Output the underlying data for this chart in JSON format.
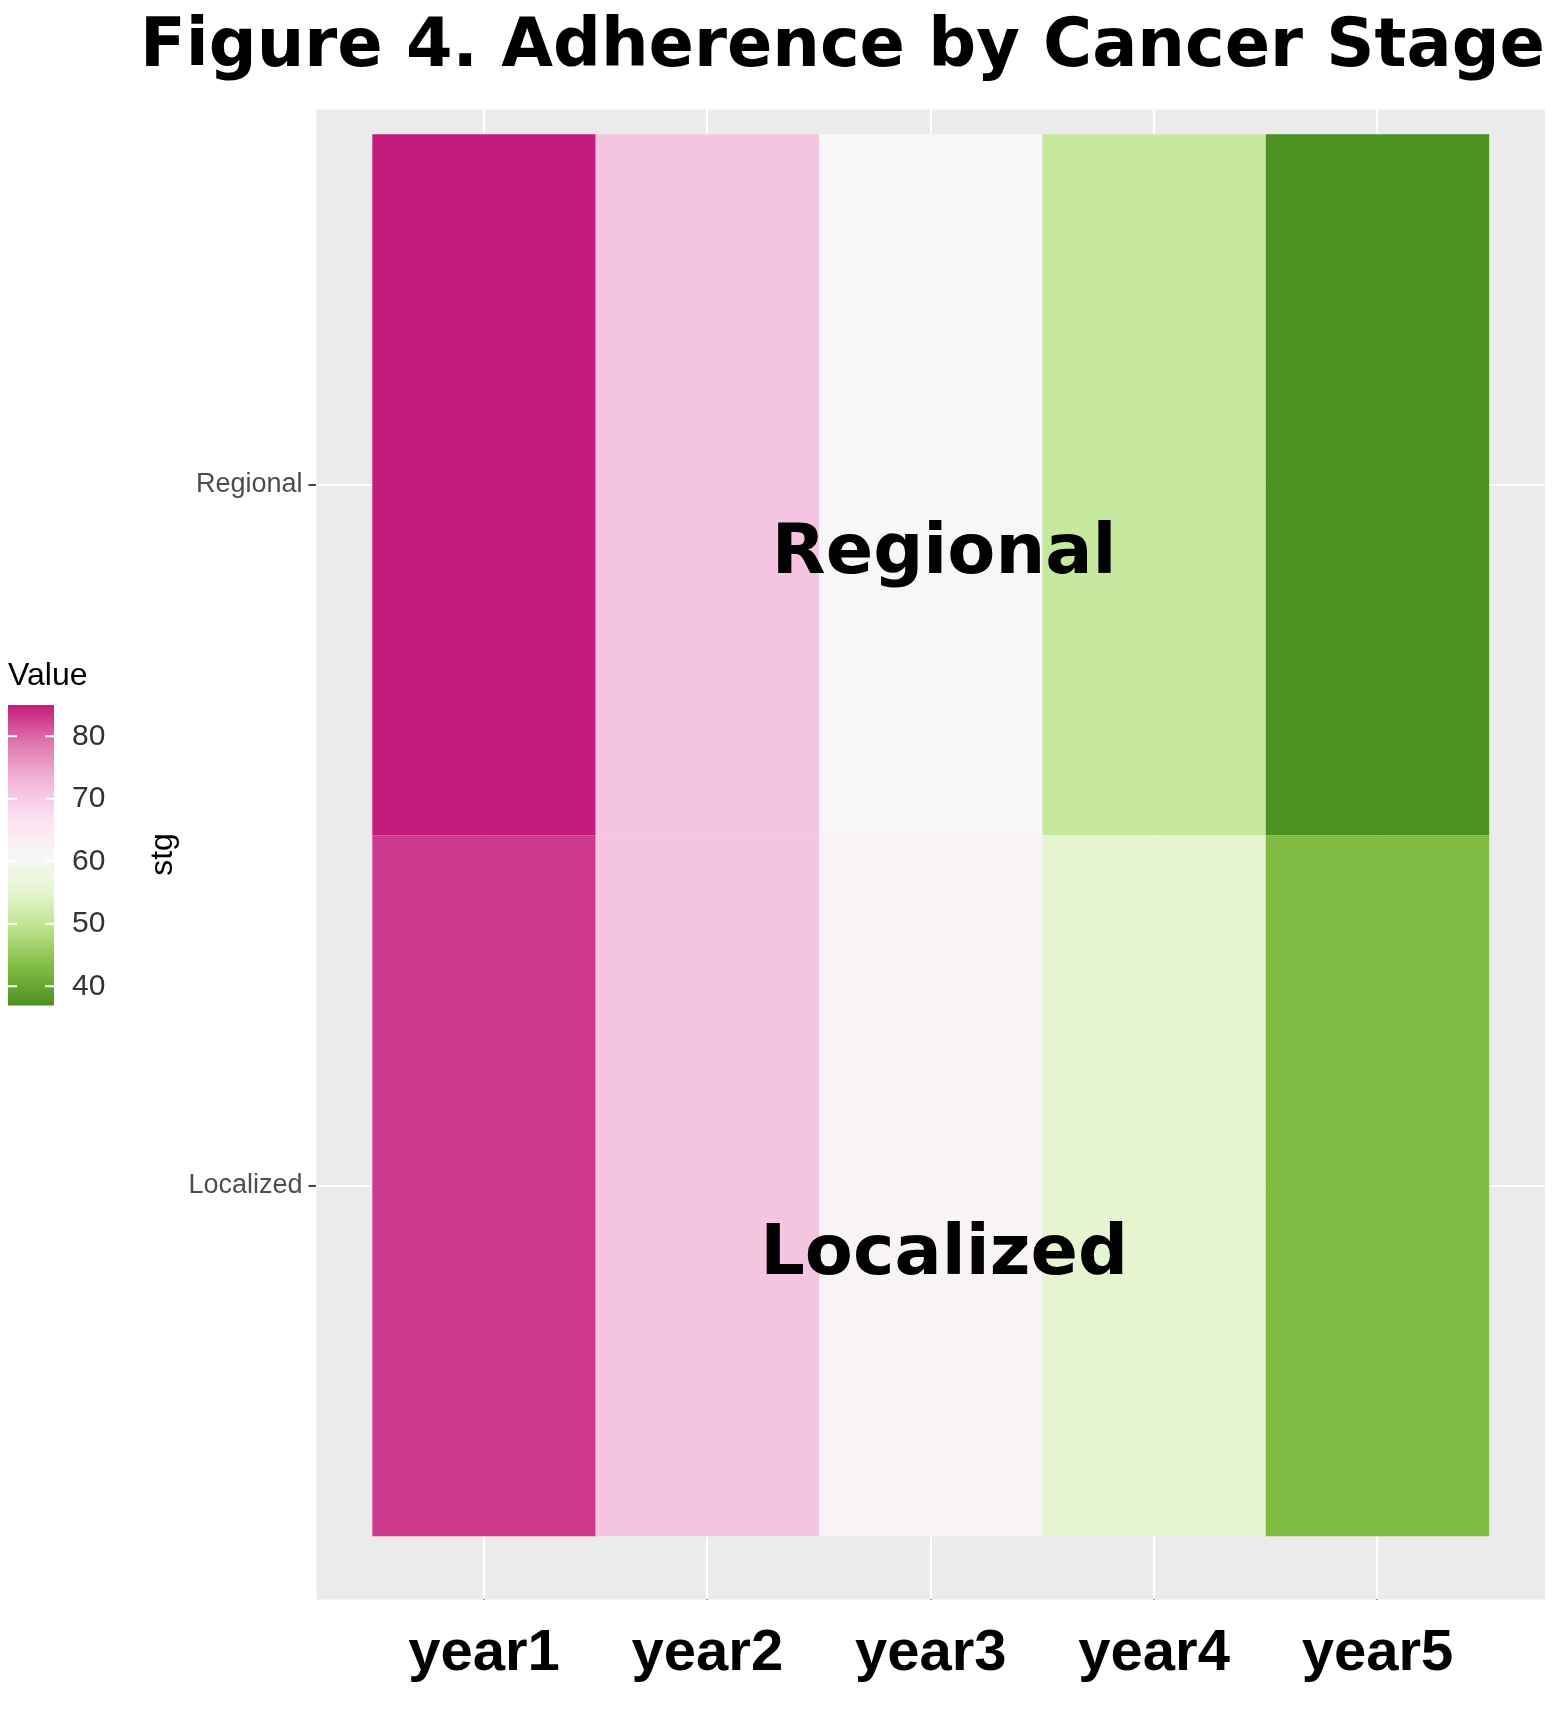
{
  "chart_data": {
    "type": "heatmap",
    "title": "Figure 4. Adherence by Cancer Stage",
    "ylabel": "stg",
    "clabel": "Value",
    "categories": [
      "year1",
      "year2",
      "year3",
      "year4",
      "year5"
    ],
    "y_categories": [
      "Regional",
      "Localized"
    ],
    "cells": [
      [
        85,
        71,
        61,
        51,
        37
      ],
      [
        83,
        71,
        62,
        55,
        43
      ]
    ],
    "clim": [
      37,
      85
    ],
    "cticks": [
      40,
      50,
      60,
      70,
      80
    ],
    "grid": true,
    "annotations": [
      "Regional",
      "Localized"
    ]
  }
}
